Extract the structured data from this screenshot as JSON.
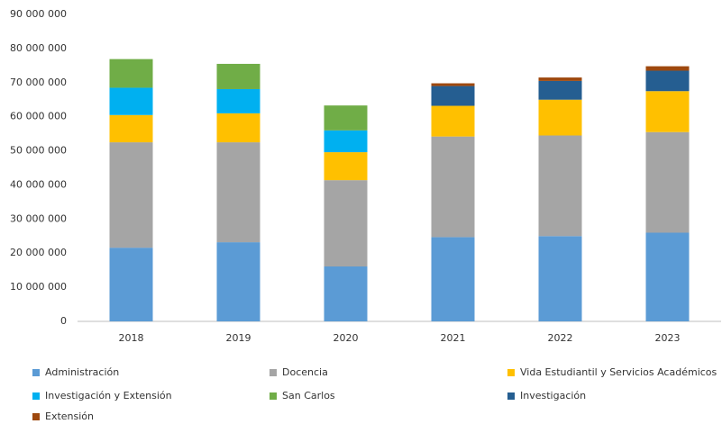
{
  "chart_data": {
    "type": "stacked_bar",
    "categories": [
      "2018",
      "2019",
      "2020",
      "2021",
      "2022",
      "2023"
    ],
    "series": [
      {
        "name": "Administración",
        "color": "#5b9bd5",
        "values": [
          21600000,
          23200000,
          16100000,
          24700000,
          25000000,
          26000000
        ]
      },
      {
        "name": "Docencia",
        "color": "#a5a5a5",
        "values": [
          30900000,
          29300000,
          25300000,
          29500000,
          29500000,
          29500000
        ]
      },
      {
        "name": "Vida Estudiantil y Servicios Académicos",
        "color": "#ffc000",
        "values": [
          8000000,
          8500000,
          8200000,
          9000000,
          10500000,
          12000000
        ]
      },
      {
        "name": "Investigación y Extensión",
        "color": "#00b0f0",
        "values": [
          8000000,
          7100000,
          6400000,
          null,
          null,
          null
        ]
      },
      {
        "name": "San Carlos",
        "color": "#70ad47",
        "values": [
          8400000,
          7400000,
          7300000,
          null,
          null,
          null
        ]
      },
      {
        "name": "Investigación",
        "color": "#255e91",
        "values": [
          null,
          null,
          null,
          5800000,
          5500000,
          6000000
        ]
      },
      {
        "name": "Extensión",
        "color": "#9e480e",
        "values": [
          null,
          null,
          null,
          800000,
          1000000,
          1300000
        ]
      }
    ],
    "ylim": [
      0,
      90000000
    ],
    "yticks": [
      0,
      {
        "value": 10000000,
        "label": "10 000 000"
      },
      {
        "value": 20000000,
        "label": "20 000 000"
      },
      {
        "value": 30000000,
        "label": "30 000 000"
      },
      {
        "value": 40000000,
        "label": "40 000 000"
      },
      {
        "value": 50000000,
        "label": "50 000 000"
      },
      {
        "value": 60000000,
        "label": "60 000 000"
      },
      {
        "value": 70000000,
        "label": "70 000 000"
      },
      {
        "value": 80000000,
        "label": "80 000 000"
      },
      {
        "value": 90000000,
        "label": "90 000 000"
      }
    ],
    "grid": false,
    "legend": "bottom"
  }
}
